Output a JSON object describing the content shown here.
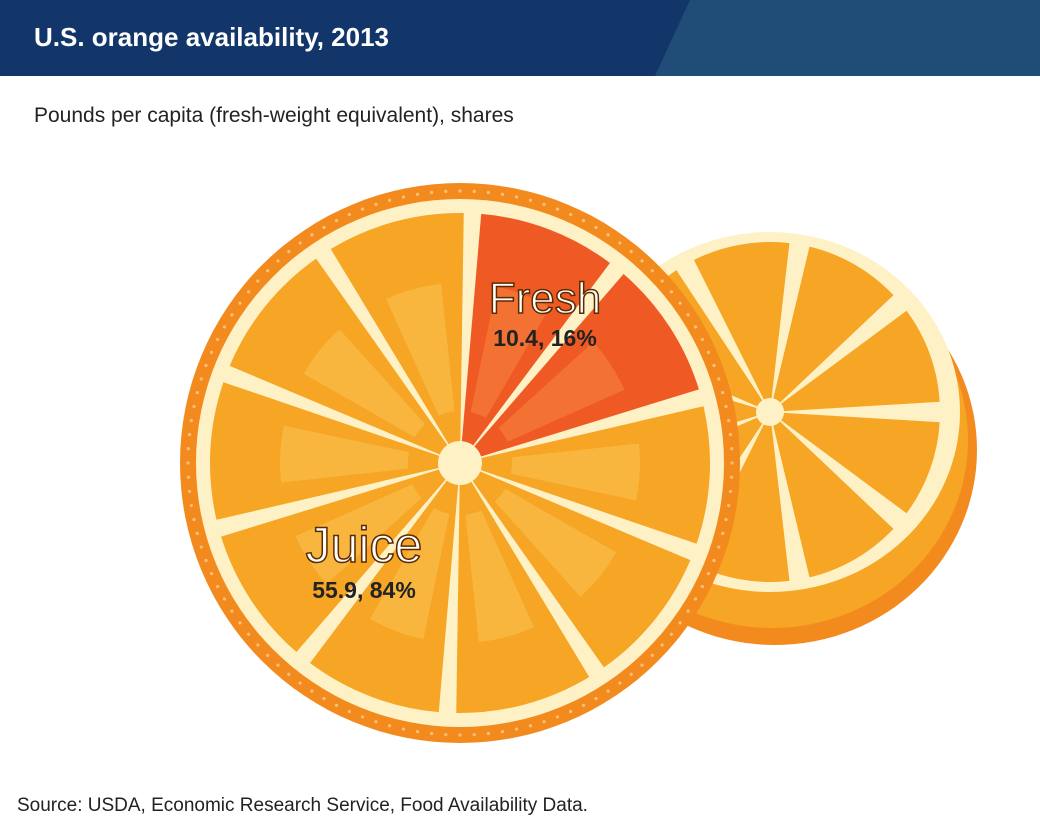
{
  "title": "U.S. orange availability, 2013",
  "subtitle": "Pounds per capita (fresh-weight equivalent), shares",
  "source": "Source: USDA, Economic Research Service, Food Availability Data.",
  "colors": {
    "header": "#12366a",
    "header_accent": "#1f4d78",
    "rind": "#f28a1e",
    "pith": "#fef1c6",
    "juice_segment": "#f6a524",
    "fresh_segment": "#ef5a24",
    "label_text": "#222222"
  },
  "chart_data": {
    "type": "pie",
    "title": "U.S. orange availability, 2013",
    "subtitle": "Pounds per capita (fresh-weight equivalent), shares",
    "slices": [
      {
        "label": "Juice",
        "value": 55.9,
        "share_pct": 84,
        "value_label": "55.9, 84%",
        "color": "#f6a524"
      },
      {
        "label": "Fresh",
        "value": 10.4,
        "share_pct": 16,
        "value_label": "10.4, 16%",
        "color": "#ef5a24"
      }
    ]
  }
}
